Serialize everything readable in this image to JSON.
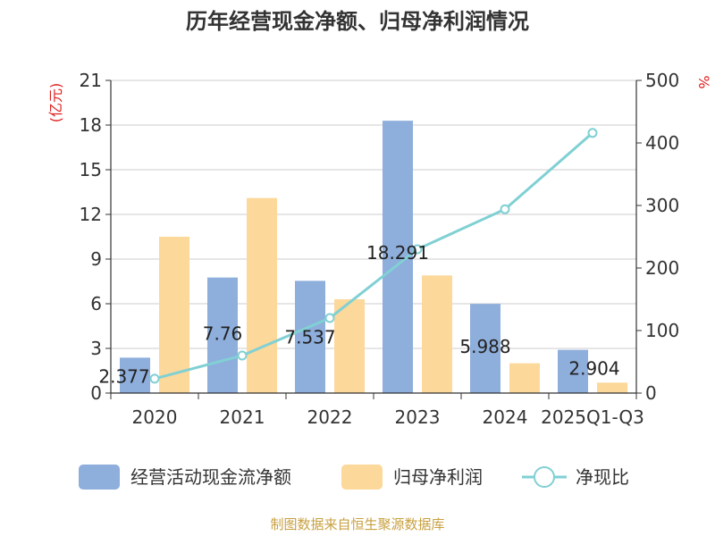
{
  "chart_data": {
    "type": "bar",
    "title": "历年经营现金净额、归母净利润情况",
    "left_unit": "(亿元)",
    "right_unit": "%",
    "categories": [
      "2020",
      "2021",
      "2022",
      "2023",
      "2024",
      "2025Q1-Q3"
    ],
    "ylim": [
      0,
      21
    ],
    "yticks": [
      "0",
      "3",
      "6",
      "9",
      "12",
      "15",
      "18",
      "21"
    ],
    "y2lim": [
      0,
      500
    ],
    "y2ticks": [
      "0",
      "100",
      "200",
      "300",
      "400",
      "500"
    ],
    "grid": true,
    "series": [
      {
        "name": "经营活动现金流净额",
        "kind": "bar",
        "axis": "left",
        "color": "#8eaedc",
        "values": [
          2.377,
          7.76,
          7.537,
          18.291,
          5.988,
          2.904
        ],
        "labels": [
          "2.377",
          "7.76",
          "7.537",
          "18.291",
          "5.988",
          "2.904"
        ]
      },
      {
        "name": "归母净利润",
        "kind": "bar",
        "axis": "left",
        "color": "#fcd89a",
        "values": [
          10.5,
          13.1,
          6.3,
          7.9,
          2.0,
          0.7
        ]
      },
      {
        "name": "净现比",
        "kind": "line",
        "axis": "right",
        "color": "#80d0d4",
        "values": [
          23,
          60,
          120,
          230,
          294,
          416
        ]
      }
    ],
    "legend_position": "bottom",
    "source": "制图数据来自恒生聚源数据库"
  }
}
